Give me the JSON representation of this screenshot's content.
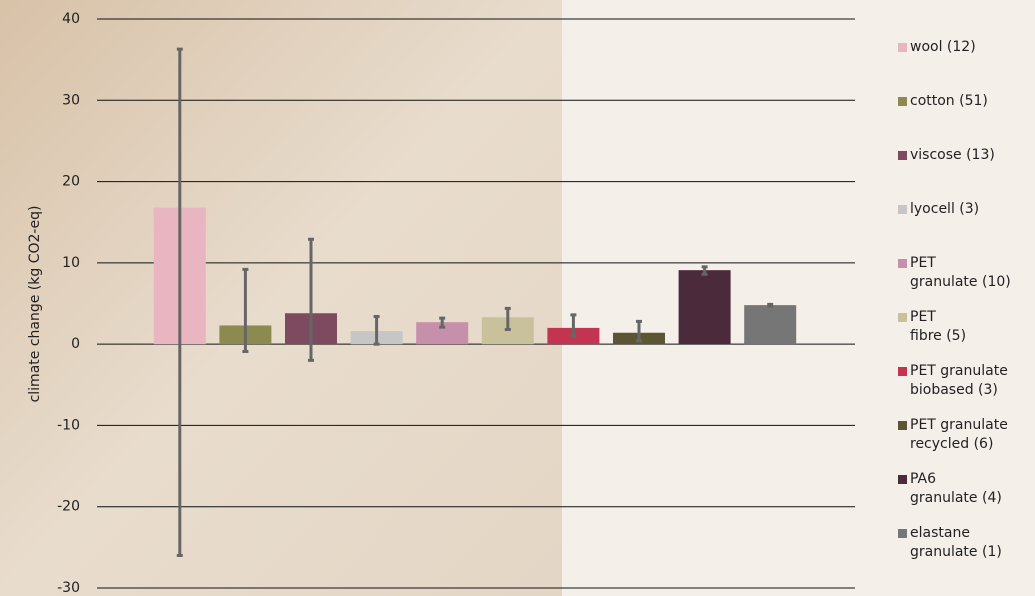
{
  "chart_data": {
    "type": "bar",
    "y_label": "climate change (kg CO2-eq)",
    "ylim": [
      -30,
      40
    ],
    "yticks": [
      -30,
      -20,
      -10,
      0,
      10,
      20,
      30,
      40
    ],
    "grid": true,
    "legend": "right",
    "series": [
      {
        "name": "wool (12)",
        "color": "#e8b5c1",
        "values": [
          16.8
        ],
        "error_plus": [
          19.5
        ],
        "error_minus": [
          42.8
        ]
      },
      {
        "name": "cotton (51)",
        "color": "#8d8a50",
        "values": [
          2.3
        ],
        "error_plus": [
          6.9
        ],
        "error_minus": [
          3.2
        ]
      },
      {
        "name": "viscose (13)",
        "color": "#7e4a5f",
        "values": [
          3.8
        ],
        "error_plus": [
          9.1
        ],
        "error_minus": [
          5.8
        ]
      },
      {
        "name": "lyocell (3)",
        "color": "#c6c6c6",
        "values": [
          1.6
        ],
        "error_plus": [
          1.8
        ],
        "error_minus": [
          1.6
        ]
      },
      {
        "name": "PET\ngranulate (10)",
        "color": "#c690aa",
        "values": [
          2.7
        ],
        "error_plus": [
          0.5
        ],
        "error_minus": [
          0.6
        ]
      },
      {
        "name": "PET\nfibre (5)",
        "color": "#c9c19b",
        "values": [
          3.3
        ],
        "error_plus": [
          1.1
        ],
        "error_minus": [
          1.5
        ]
      },
      {
        "name": "PET granulate\nbiobased (3)",
        "color": "#c2344f",
        "values": [
          2.0
        ],
        "error_plus": [
          1.6
        ],
        "error_minus": [
          1.0
        ]
      },
      {
        "name": "PET granulate\nrecycled (6)",
        "color": "#5c5533",
        "values": [
          1.4
        ],
        "error_plus": [
          1.4
        ],
        "error_minus": [
          1.0
        ]
      },
      {
        "name": "PA6\ngranulate (4)",
        "color": "#4b2a3b",
        "values": [
          9.1
        ],
        "error_plus": [
          0.4
        ],
        "error_minus": [
          0.5
        ]
      },
      {
        "name": "elastane\ngranulate (1)",
        "color": "#767676",
        "values": [
          4.8
        ],
        "error_plus": [
          0.1
        ],
        "error_minus": [
          0.1
        ]
      }
    ]
  }
}
